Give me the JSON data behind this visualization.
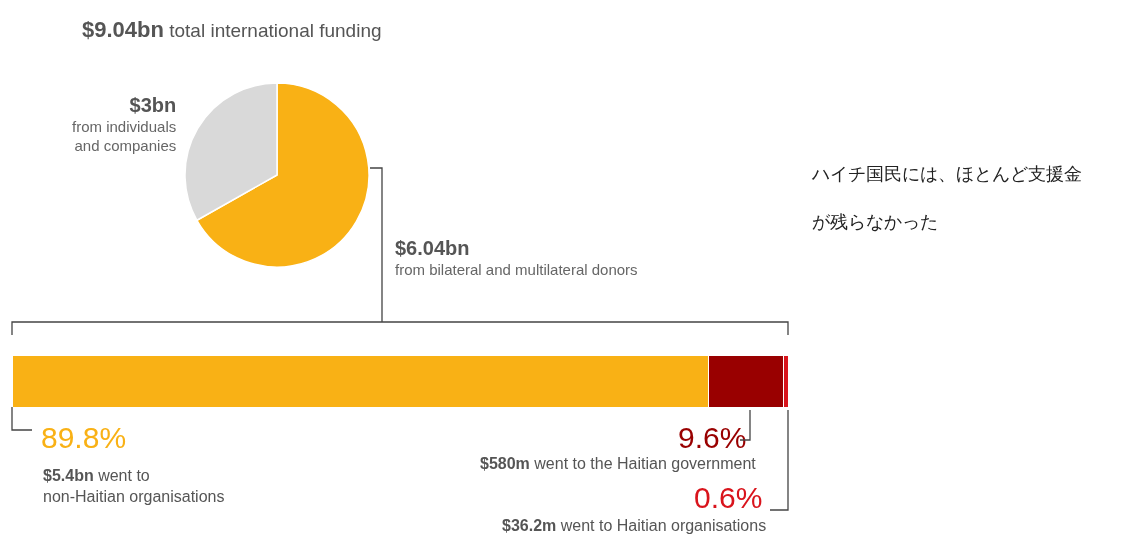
{
  "chart_data": [
    {
      "type": "pie",
      "title": "$9.04bn total international funding",
      "categories": [
        "from bilateral and multilateral donors",
        "from individuals and companies"
      ],
      "values": [
        6.04,
        3
      ],
      "value_labels": [
        "$6.04bn",
        "$3bn"
      ],
      "colors": [
        "#f9b115",
        "#d9d9d9"
      ],
      "legend": false,
      "annotations": [
        "ハイチ国民には、ほとんど支援金が残らなかった"
      ]
    },
    {
      "type": "bar",
      "orientation": "horizontal",
      "stacked": true,
      "categories": [
        null
      ],
      "xlim": [
        0,
        100
      ],
      "legend": false,
      "series": [
        {
          "color": "#f9b115",
          "values": [
            89.8
          ],
          "value_labels": [
            "89.8%"
          ]
        },
        {
          "color": "#990000",
          "values": [
            9.6
          ],
          "value_labels": [
            "9.6%"
          ]
        },
        {
          "color": "#d9141c",
          "values": [
            0.6
          ],
          "value_labels": [
            "0.6%"
          ]
        }
      ],
      "annotations": [
        "$5.4bn went to non-Haitian organisations",
        "$580m went to the Haitian government",
        "$36.2m went to Haitian organisations"
      ]
    }
  ]
}
